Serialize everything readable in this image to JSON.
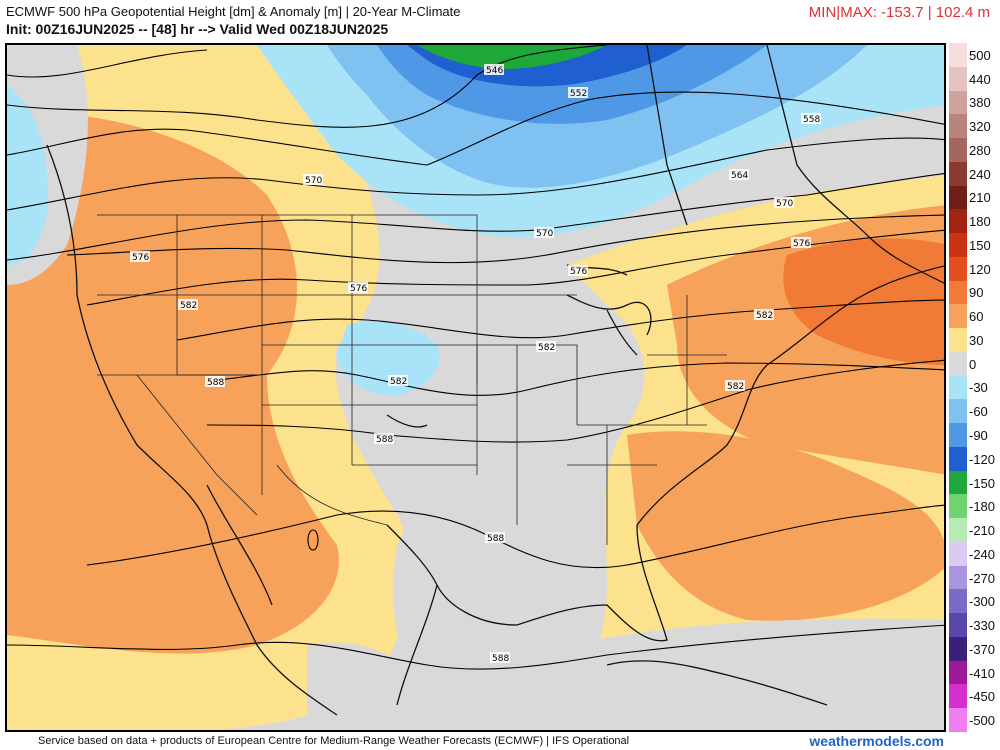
{
  "header": {
    "title": "ECMWF 500 hPa Geopotential Height [dm] & Anomaly [m] | 20-Year M-Climate",
    "init": "Init: 00Z16JUN2025 -- [48] hr --> Valid Wed 00Z18JUN2025",
    "minmax": "MIN|MAX: -153.7 | 102.4 m"
  },
  "footer": {
    "credit": "Service based on data + products of European Centre for Medium-Range Weather Forecasts (ECMWF) | IFS Operational",
    "brand": "weathermodels.com"
  },
  "colorbar": {
    "levels": [
      {
        "label": "500",
        "color": "#f7dede"
      },
      {
        "label": "440",
        "color": "#e6c3c0"
      },
      {
        "label": "380",
        "color": "#d1a29c"
      },
      {
        "label": "320",
        "color": "#b9847c"
      },
      {
        "label": "280",
        "color": "#a4665f"
      },
      {
        "label": "240",
        "color": "#8a3a2e"
      },
      {
        "label": "210",
        "color": "#6e1e16"
      },
      {
        "label": "180",
        "color": "#a1240f"
      },
      {
        "label": "150",
        "color": "#c93314"
      },
      {
        "label": "120",
        "color": "#e44e1f"
      },
      {
        "label": "90",
        "color": "#f27a37"
      },
      {
        "label": "60",
        "color": "#f7a25b"
      },
      {
        "label": "30",
        "color": "#fde28e"
      },
      {
        "label": "0",
        "color": "#d9d9d9"
      },
      {
        "label": "-30",
        "color": "#a9e3f7"
      },
      {
        "label": "-60",
        "color": "#7fc2f1"
      },
      {
        "label": "-90",
        "color": "#4f98e6"
      },
      {
        "label": "-120",
        "color": "#1f5fcf"
      },
      {
        "label": "-150",
        "color": "#1fa83a"
      },
      {
        "label": "-180",
        "color": "#6fd46f"
      },
      {
        "label": "-210",
        "color": "#b6ebb4"
      },
      {
        "label": "-240",
        "color": "#d9ccf2"
      },
      {
        "label": "-270",
        "color": "#a895e0"
      },
      {
        "label": "-300",
        "color": "#7b6bc9"
      },
      {
        "label": "-330",
        "color": "#5a45ad"
      },
      {
        "label": "-370",
        "color": "#3c1f78"
      },
      {
        "label": "-410",
        "color": "#a0189a"
      },
      {
        "label": "-450",
        "color": "#d62fcf"
      },
      {
        "label": "-500",
        "color": "#f07ef0"
      }
    ]
  },
  "contours": {
    "labels": [
      "546",
      "552",
      "558",
      "564",
      "570",
      "576",
      "582",
      "588"
    ]
  }
}
